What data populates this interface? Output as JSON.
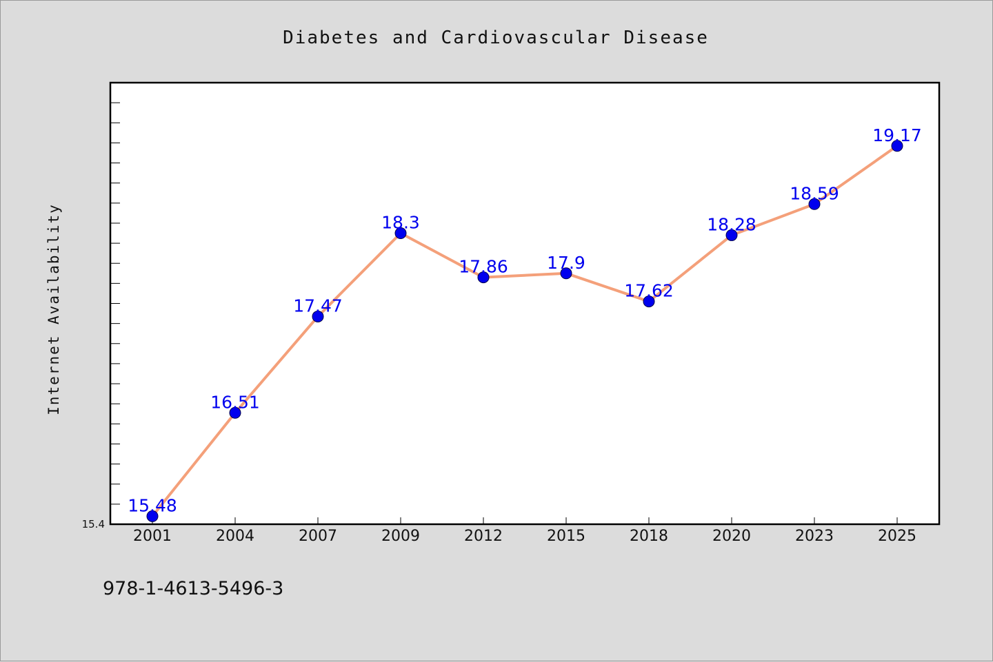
{
  "chart_data": {
    "type": "line",
    "title": "Diabetes and Cardiovascular Disease",
    "xlabel": "",
    "ylabel": "Internet Availability",
    "categories": [
      "2001",
      "2004",
      "2007",
      "2009",
      "2012",
      "2015",
      "2018",
      "2020",
      "2023",
      "2025"
    ],
    "series": [
      {
        "values": [
          15.48,
          16.51,
          17.47,
          18.3,
          17.86,
          17.9,
          17.62,
          18.28,
          18.59,
          19.17
        ],
        "labels": [
          "15.48",
          "16.51",
          "17.47",
          "18.3",
          "17.86",
          "17.9",
          "17.62",
          "18.28",
          "18.59",
          "19.17"
        ],
        "line_color": "#f4a07a",
        "marker_color": "#0000ee"
      }
    ],
    "y_tick_labels": [
      "15.4"
    ],
    "ylim": [
      15.4,
      19.8
    ],
    "grid": false,
    "legend": "none"
  },
  "footer": {
    "text": "978-1-4613-5496-3"
  }
}
